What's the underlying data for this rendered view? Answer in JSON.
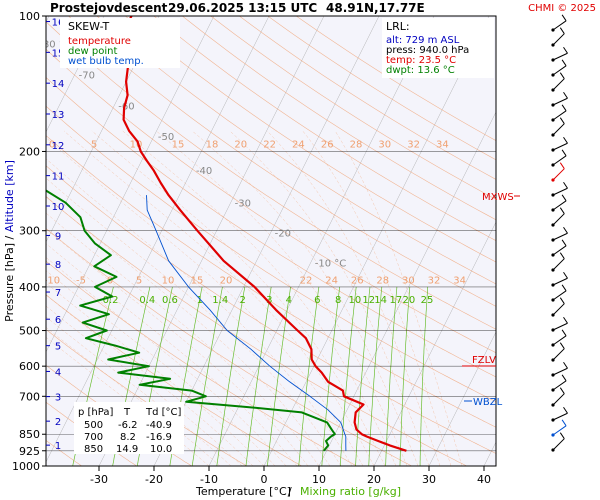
{
  "header": {
    "station": "Prostejov",
    "mode": "descent",
    "datetime": "29.06.2025 13:15 UTC",
    "coords": "48.91N,17.77E",
    "credit": "CHMI © 2025"
  },
  "legend": {
    "title": "SKEW-T",
    "items": [
      {
        "label": "temperature",
        "color": "#e00000"
      },
      {
        "label": "dew point",
        "color": "#008000"
      },
      {
        "label": "wet bulb temp.",
        "color": "#0050d0"
      }
    ]
  },
  "lrl": {
    "title": "LRL:",
    "alt": "alt: 729 m ASL",
    "press": "press: 940.0 hPa",
    "temp": "temp: 23.5 °C",
    "dwpt": "dwpt: 13.6 °C"
  },
  "levels": [
    {
      "label": "MXWS",
      "color": "#e00000"
    },
    {
      "label": "FZLV",
      "color": "#e00000"
    },
    {
      "label": "WBZL",
      "color": "#0050d0"
    }
  ],
  "table": {
    "headers": [
      "p [hPa]",
      "T",
      "Td [°C]"
    ],
    "rows": [
      [
        "500",
        "-6.2",
        "-40.9"
      ],
      [
        "700",
        "8.2",
        "-16.9"
      ],
      [
        "850",
        "14.9",
        "10.0"
      ]
    ]
  },
  "colors": {
    "temperature": "#e00000",
    "dewpoint": "#008000",
    "wetbulb": "#0050d0",
    "dry_adiabat": "#f0a070",
    "moist_adiabat": "#f0a070",
    "mixing_ratio": "#4ab000",
    "isotherm": "#999999",
    "altitude_axis": "#0000c0"
  },
  "chart_data": {
    "type": "line",
    "title": "Prostejov descent 29.06.2025 13:15 UTC 48.91N,17.77E",
    "xlabel": "Temperature [°C] / Mixing ratio [g/kg]",
    "ylabel": "Pressure [hPa] / Altitude [km]",
    "x_ticks": [
      -30,
      -20,
      -10,
      0,
      10,
      20,
      30,
      40
    ],
    "y_ticks": [
      100,
      200,
      300,
      400,
      500,
      600,
      700,
      850,
      925,
      1000
    ],
    "y_scale": "log",
    "altitude_ticks": [
      1,
      2,
      3,
      4,
      5,
      6,
      7,
      8,
      9,
      10,
      11,
      12,
      13,
      14,
      15,
      16
    ],
    "isotherm_labels": [
      "-80 °C",
      "-70",
      "-60",
      "-50",
      "-40",
      "-30",
      "-20",
      "-10 °C"
    ],
    "dry_adiabat_labels_upper": [
      "0",
      "5",
      "10",
      "15",
      "18",
      "20",
      "22",
      "24",
      "26",
      "28",
      "30",
      "32",
      "34"
    ],
    "dry_adiabat_labels_lower": [
      "-10",
      "-5",
      "0",
      "5",
      "10",
      "15",
      "20",
      "22",
      "24",
      "26",
      "28",
      "30",
      "32",
      "34"
    ],
    "mixing_ratio_labels": [
      "0.2",
      "0.4",
      "0.6",
      "1",
      "1.4",
      "2",
      "3",
      "4",
      "6",
      "8",
      "10",
      "12",
      "14",
      "17",
      "20",
      "25"
    ],
    "series": [
      {
        "name": "temperature",
        "points": [
          [
            925,
            24.5
          ],
          [
            900,
            21.0
          ],
          [
            880,
            18.5
          ],
          [
            860,
            16.0
          ],
          [
            850,
            14.9
          ],
          [
            830,
            13.5
          ],
          [
            800,
            12.5
          ],
          [
            760,
            11.8
          ],
          [
            730,
            12.5
          ],
          [
            700,
            8.2
          ],
          [
            680,
            7.5
          ],
          [
            650,
            4.0
          ],
          [
            620,
            2.0
          ],
          [
            600,
            0.3
          ],
          [
            580,
            -1.0
          ],
          [
            550,
            -2.0
          ],
          [
            520,
            -4.0
          ],
          [
            500,
            -6.2
          ],
          [
            450,
            -12.0
          ],
          [
            400,
            -18.0
          ],
          [
            350,
            -26.0
          ],
          [
            300,
            -33.5
          ],
          [
            270,
            -38.5
          ],
          [
            250,
            -42.0
          ],
          [
            235,
            -44.5
          ],
          [
            220,
            -47.0
          ],
          [
            210,
            -49.0
          ],
          [
            200,
            -51.0
          ],
          [
            190,
            -52.5
          ],
          [
            180,
            -55.0
          ],
          [
            170,
            -57.0
          ],
          [
            160,
            -58.0
          ],
          [
            150,
            -58.5
          ],
          [
            140,
            -60.0
          ],
          [
            130,
            -61.0
          ],
          [
            120,
            -62.5
          ],
          [
            110,
            -64.0
          ],
          [
            103,
            -65.0
          ],
          [
            100,
            -65.0
          ]
        ]
      },
      {
        "name": "dew point",
        "points": [
          [
            925,
            9.5
          ],
          [
            900,
            9.8
          ],
          [
            880,
            9.0
          ],
          [
            860,
            9.5
          ],
          [
            850,
            10.0
          ],
          [
            830,
            9.0
          ],
          [
            800,
            7.5
          ],
          [
            760,
            2.0
          ],
          [
            740,
            -8.0
          ],
          [
            720,
            -20.0
          ],
          [
            700,
            -16.9
          ],
          [
            680,
            -20.0
          ],
          [
            660,
            -30.0
          ],
          [
            640,
            -25.0
          ],
          [
            620,
            -35.0
          ],
          [
            600,
            -30.0
          ],
          [
            580,
            -38.0
          ],
          [
            560,
            -33.0
          ],
          [
            540,
            -38.0
          ],
          [
            520,
            -44.0
          ],
          [
            500,
            -40.9
          ],
          [
            480,
            -46.0
          ],
          [
            460,
            -42.0
          ],
          [
            440,
            -48.0
          ],
          [
            420,
            -43.0
          ],
          [
            400,
            -47.0
          ],
          [
            380,
            -44.0
          ],
          [
            360,
            -49.0
          ],
          [
            340,
            -47.0
          ],
          [
            320,
            -51.0
          ],
          [
            300,
            -54.0
          ],
          [
            280,
            -56.0
          ],
          [
            260,
            -60.0
          ],
          [
            240,
            -66.0
          ],
          [
            220,
            -67.0
          ],
          [
            210,
            -70.0
          ],
          [
            200,
            -73.0
          ],
          [
            185,
            -75.0
          ],
          [
            170,
            -79.0
          ],
          [
            155,
            -81.0
          ],
          [
            140,
            -83.0
          ],
          [
            125,
            -82.0
          ],
          [
            115,
            -84.0
          ],
          [
            105,
            -86.0
          ],
          [
            100,
            -88.0
          ]
        ]
      },
      {
        "name": "wet bulb temp.",
        "points": [
          [
            925,
            13.5
          ],
          [
            900,
            13.0
          ],
          [
            880,
            12.6
          ],
          [
            860,
            12.2
          ],
          [
            850,
            11.8
          ],
          [
            800,
            10.0
          ],
          [
            750,
            6.5
          ],
          [
            700,
            2.0
          ],
          [
            650,
            -3.0
          ],
          [
            600,
            -8.0
          ],
          [
            550,
            -13.0
          ],
          [
            500,
            -19.0
          ],
          [
            450,
            -24.0
          ],
          [
            400,
            -30.0
          ],
          [
            350,
            -36.0
          ],
          [
            300,
            -41.0
          ],
          [
            270,
            -44.5
          ],
          [
            250,
            -46.0
          ]
        ]
      }
    ]
  }
}
